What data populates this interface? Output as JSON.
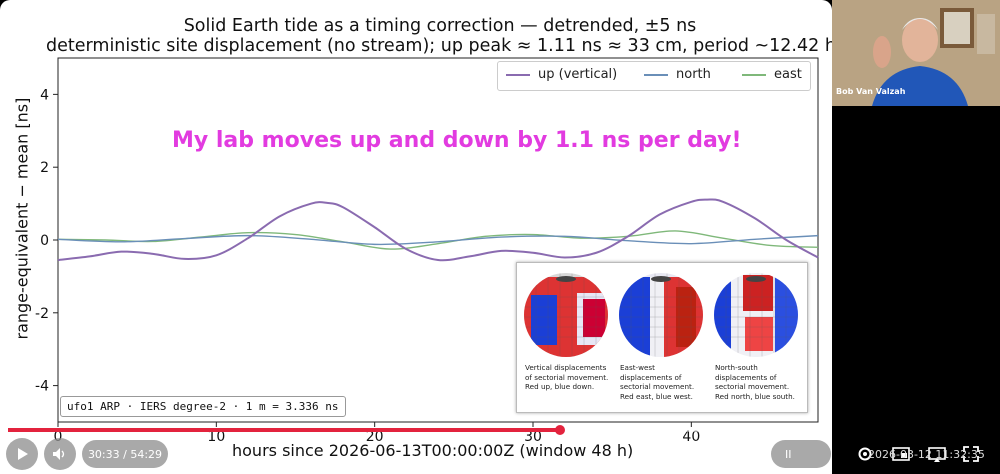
{
  "slide": {
    "title_line1": "Solid Earth tide as a timing correction — detrended, ±5 ns",
    "title_line2": "deterministic site displacement (no stream); up peak ≈ 1.11 ns ≈ 33 cm, period ~12.42 h",
    "callout": "My lab moves up and down by 1.1 ns per day!",
    "annotation": "ufo1 ARP · IERS degree-2 · 1 m = 3.336 ns",
    "inset": {
      "captions": [
        "Vertical displacements of sectorial movement. Red up, blue down.",
        "East-west displacements of sectorial movement. Red east, blue west.",
        "North-south displacements of sectorial movement. Red north, blue south."
      ]
    }
  },
  "chart_data": {
    "type": "line",
    "title": "Solid Earth tide as a timing correction — detrended, ±5 ns",
    "subtitle": "deterministic site displacement (no stream); up peak ≈ 1.11 ns ≈ 33 cm, period ~12.42 h",
    "xlabel": "hours since 2026-06-13T00:00:00Z   (window 48 h)",
    "ylabel": "range-equivalent − mean  [ns]",
    "xlim": [
      0,
      48
    ],
    "ylim": [
      -5,
      5
    ],
    "xticks": [
      0,
      10,
      20,
      30,
      40
    ],
    "yticks": [
      4,
      2,
      0,
      -2,
      -4
    ],
    "legend_position": "top-right",
    "grid": false,
    "series": [
      {
        "name": "up (vertical)",
        "color": "#8a6bb0",
        "x": [
          0,
          2,
          4,
          6,
          8,
          10,
          12,
          14,
          16,
          17,
          18,
          20,
          22,
          24,
          26,
          28,
          30,
          32,
          34,
          36,
          38,
          40,
          41,
          42,
          44,
          46,
          48
        ],
        "values": [
          -0.55,
          -0.45,
          -0.32,
          -0.38,
          -0.52,
          -0.42,
          0.05,
          0.65,
          1.0,
          1.02,
          0.9,
          0.35,
          -0.25,
          -0.55,
          -0.45,
          -0.3,
          -0.35,
          -0.48,
          -0.35,
          0.1,
          0.7,
          1.05,
          1.11,
          1.05,
          0.6,
          0.0,
          -0.48
        ]
      },
      {
        "name": "north",
        "color": "#6a8fb8",
        "x": [
          0,
          4,
          8,
          12,
          16,
          20,
          24,
          28,
          32,
          36,
          40,
          44,
          48
        ],
        "values": [
          0.02,
          -0.05,
          0.04,
          0.12,
          0.02,
          -0.12,
          -0.05,
          0.08,
          0.1,
          -0.02,
          -0.1,
          0.02,
          0.12
        ]
      },
      {
        "name": "east",
        "color": "#7fb87a",
        "x": [
          0,
          3,
          6,
          9,
          12,
          15,
          18,
          21,
          24,
          27,
          30,
          33,
          36,
          39,
          42,
          45,
          48
        ],
        "values": [
          0.02,
          0.0,
          -0.04,
          0.08,
          0.2,
          0.15,
          -0.05,
          -0.25,
          -0.1,
          0.1,
          0.15,
          0.05,
          0.1,
          0.25,
          0.05,
          -0.15,
          -0.2
        ]
      }
    ]
  },
  "webcam": {
    "name": "Bob Van Valzah"
  },
  "player": {
    "time": "30:33 / 54:29",
    "progress": 0.68,
    "clock": "2026-03-12 11:32:35",
    "pause_label": "II"
  }
}
